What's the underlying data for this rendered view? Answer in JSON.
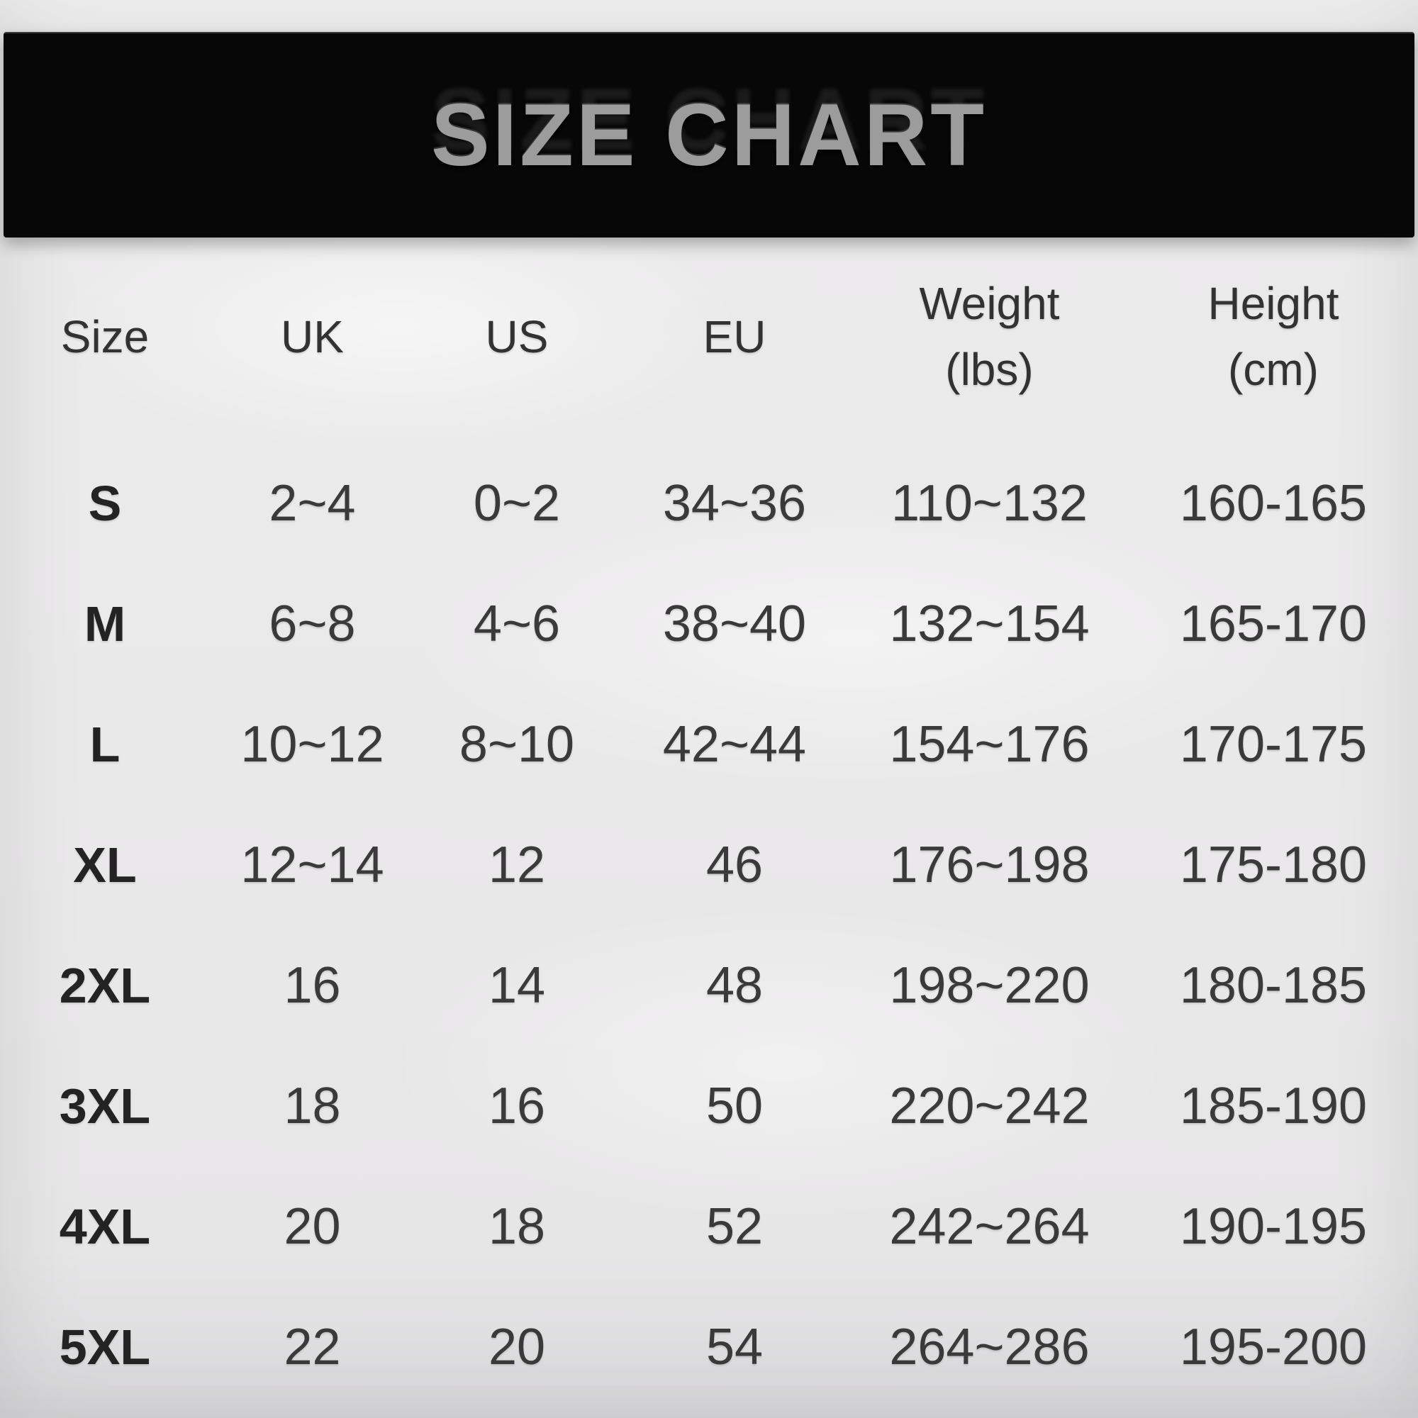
{
  "colors": {
    "page_background": "#e9e8e9",
    "banner_background": "#070707",
    "title_color": "#9c9c9c",
    "text_color": "#3a3a3a"
  },
  "banner": {
    "title": "SIZE CHART"
  },
  "table": {
    "headers": [
      {
        "label": "Size",
        "sub": ""
      },
      {
        "label": "UK",
        "sub": ""
      },
      {
        "label": "US",
        "sub": ""
      },
      {
        "label": "EU",
        "sub": ""
      },
      {
        "label": "Weight",
        "sub": "(lbs)"
      },
      {
        "label": "Height",
        "sub": "(cm)"
      }
    ],
    "rows": [
      {
        "size": "S",
        "uk": "2~4",
        "us": "0~2",
        "eu": "34~36",
        "weight": "110~132",
        "height": "160-165"
      },
      {
        "size": "M",
        "uk": "6~8",
        "us": "4~6",
        "eu": "38~40",
        "weight": "132~154",
        "height": "165-170"
      },
      {
        "size": "L",
        "uk": "10~12",
        "us": "8~10",
        "eu": "42~44",
        "weight": "154~176",
        "height": "170-175"
      },
      {
        "size": "XL",
        "uk": "12~14",
        "us": "12",
        "eu": "46",
        "weight": "176~198",
        "height": "175-180"
      },
      {
        "size": "2XL",
        "uk": "16",
        "us": "14",
        "eu": "48",
        "weight": "198~220",
        "height": "180-185"
      },
      {
        "size": "3XL",
        "uk": "18",
        "us": "16",
        "eu": "50",
        "weight": "220~242",
        "height": "185-190"
      },
      {
        "size": "4XL",
        "uk": "20",
        "us": "18",
        "eu": "52",
        "weight": "242~264",
        "height": "190-195"
      },
      {
        "size": "5XL",
        "uk": "22",
        "us": "20",
        "eu": "54",
        "weight": "264~286",
        "height": "195-200"
      }
    ]
  },
  "chart_data": {
    "type": "table",
    "title": "SIZE CHART",
    "columns": [
      "Size",
      "UK",
      "US",
      "EU",
      "Weight (lbs)",
      "Height (cm)"
    ],
    "rows": [
      [
        "S",
        "2~4",
        "0~2",
        "34~36",
        "110~132",
        "160-165"
      ],
      [
        "M",
        "6~8",
        "4~6",
        "38~40",
        "132~154",
        "165-170"
      ],
      [
        "L",
        "10~12",
        "8~10",
        "42~44",
        "154~176",
        "170-175"
      ],
      [
        "XL",
        "12~14",
        "12",
        "46",
        "176~198",
        "175-180"
      ],
      [
        "2XL",
        "16",
        "14",
        "48",
        "198~220",
        "180-185"
      ],
      [
        "3XL",
        "18",
        "16",
        "50",
        "220~242",
        "185-190"
      ],
      [
        "4XL",
        "20",
        "18",
        "52",
        "242~264",
        "190-195"
      ],
      [
        "5XL",
        "22",
        "20",
        "54",
        "264~286",
        "195-200"
      ]
    ]
  }
}
